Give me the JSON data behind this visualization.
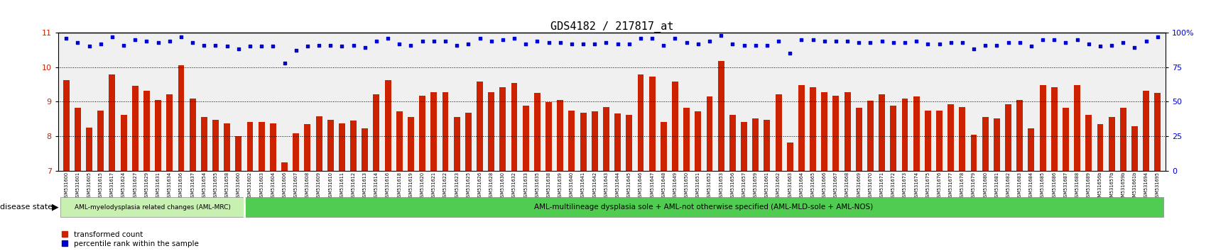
{
  "title": "GDS4182 / 217817_at",
  "gsm_ids": [
    "GSM531600",
    "GSM531601",
    "GSM531605",
    "GSM531615",
    "GSM531617",
    "GSM531624",
    "GSM531627",
    "GSM531629",
    "GSM531631",
    "GSM531634",
    "GSM531636",
    "GSM531637",
    "GSM531654",
    "GSM531655",
    "GSM531658",
    "GSM531660",
    "GSM531602",
    "GSM531603",
    "GSM531604",
    "GSM531606",
    "GSM531607",
    "GSM531608",
    "GSM531609",
    "GSM531610",
    "GSM531611",
    "GSM531612",
    "GSM531613",
    "GSM531614",
    "GSM531616",
    "GSM531618",
    "GSM531619",
    "GSM531620",
    "GSM531621",
    "GSM531622",
    "GSM531623",
    "GSM531625",
    "GSM531626",
    "GSM531628",
    "GSM531630",
    "GSM531632",
    "GSM531633",
    "GSM531635",
    "GSM531638",
    "GSM531639",
    "GSM531640",
    "GSM531641",
    "GSM531642",
    "GSM531643",
    "GSM531644",
    "GSM531645",
    "GSM531646",
    "GSM531647",
    "GSM531648",
    "GSM531649",
    "GSM531650",
    "GSM531651",
    "GSM531652",
    "GSM531653",
    "GSM531656",
    "GSM531657",
    "GSM531659",
    "GSM531661",
    "GSM531662",
    "GSM531663",
    "GSM531664",
    "GSM531665",
    "GSM531666",
    "GSM531667",
    "GSM531668",
    "GSM531669",
    "GSM531670",
    "GSM531671",
    "GSM531672",
    "GSM531673",
    "GSM531674",
    "GSM531675",
    "GSM531676",
    "GSM531677",
    "GSM531678",
    "GSM531679",
    "GSM531680",
    "GSM531681",
    "GSM531682",
    "GSM531683",
    "GSM531684",
    "GSM531685",
    "GSM531686",
    "GSM531687",
    "GSM531688",
    "GSM531689",
    "GSM531656b",
    "GSM531657b",
    "GSM531659b",
    "GSM531661b",
    "GSM531694",
    "GSM531695"
  ],
  "bar_values": [
    9.62,
    8.82,
    8.25,
    8.75,
    9.78,
    8.62,
    9.45,
    9.32,
    9.05,
    9.22,
    10.05,
    9.08,
    8.55,
    8.48,
    8.38,
    8.0,
    8.42,
    8.42,
    8.38,
    7.25,
    8.08,
    8.35,
    8.58,
    8.48,
    8.38,
    8.45,
    8.22,
    9.22,
    9.62,
    8.72,
    8.55,
    9.18,
    9.28,
    9.28,
    8.55,
    8.68,
    9.58,
    9.28,
    9.42,
    9.55,
    8.88,
    9.25,
    8.98,
    9.05,
    8.75,
    8.68,
    8.72,
    8.85,
    8.65,
    8.62,
    9.78,
    9.72,
    8.42,
    9.58,
    8.82,
    8.72,
    9.15,
    10.18,
    8.62,
    8.42,
    8.52,
    8.48,
    9.22,
    7.82,
    9.48,
    9.42,
    9.28,
    9.18,
    9.28,
    8.82,
    9.02,
    9.22,
    8.88,
    9.08,
    9.15,
    8.75,
    8.75,
    8.92,
    8.85,
    8.05,
    8.55,
    8.52,
    8.92,
    9.05,
    8.22,
    9.48,
    9.42,
    8.82,
    9.48,
    8.62,
    8.35,
    8.55,
    8.82,
    8.28,
    9.32,
    9.25
  ],
  "percentile_values": [
    96,
    93,
    90,
    92,
    97,
    91,
    95,
    94,
    93,
    94,
    97,
    93,
    91,
    91,
    90,
    88,
    90,
    90,
    90,
    78,
    87,
    90,
    91,
    91,
    90,
    91,
    89,
    94,
    96,
    92,
    91,
    94,
    94,
    94,
    91,
    92,
    96,
    94,
    95,
    96,
    92,
    94,
    93,
    93,
    92,
    92,
    92,
    93,
    92,
    92,
    96,
    96,
    91,
    96,
    93,
    92,
    94,
    98,
    92,
    91,
    91,
    91,
    94,
    85,
    95,
    95,
    94,
    94,
    94,
    93,
    93,
    94,
    93,
    93,
    94,
    92,
    92,
    93,
    93,
    88,
    91,
    91,
    93,
    93,
    90,
    95,
    95,
    93,
    95,
    92,
    90,
    91,
    93,
    89,
    94,
    97
  ],
  "group1_count": 16,
  "group1_label": "AML-myelodysplasia related changes (AML-MRC)",
  "group2_label": "AML-multilineage dysplasia sole + AML-not otherwise specified (AML-MLD-sole + AML-NOS)",
  "group1_color": "#c8f0b0",
  "group2_color": "#50cc50",
  "bar_color": "#cc2200",
  "dot_color": "#0000cc",
  "ymin": 7,
  "ymax": 11,
  "yticks_left": [
    7,
    8,
    9,
    10,
    11
  ],
  "yticks_right": [
    0,
    25,
    50,
    75,
    100
  ],
  "legend_label1": "transformed count",
  "legend_label2": "percentile rank within the sample",
  "background_color": "#ffffff",
  "plot_bg_color": "#f0f0f0"
}
